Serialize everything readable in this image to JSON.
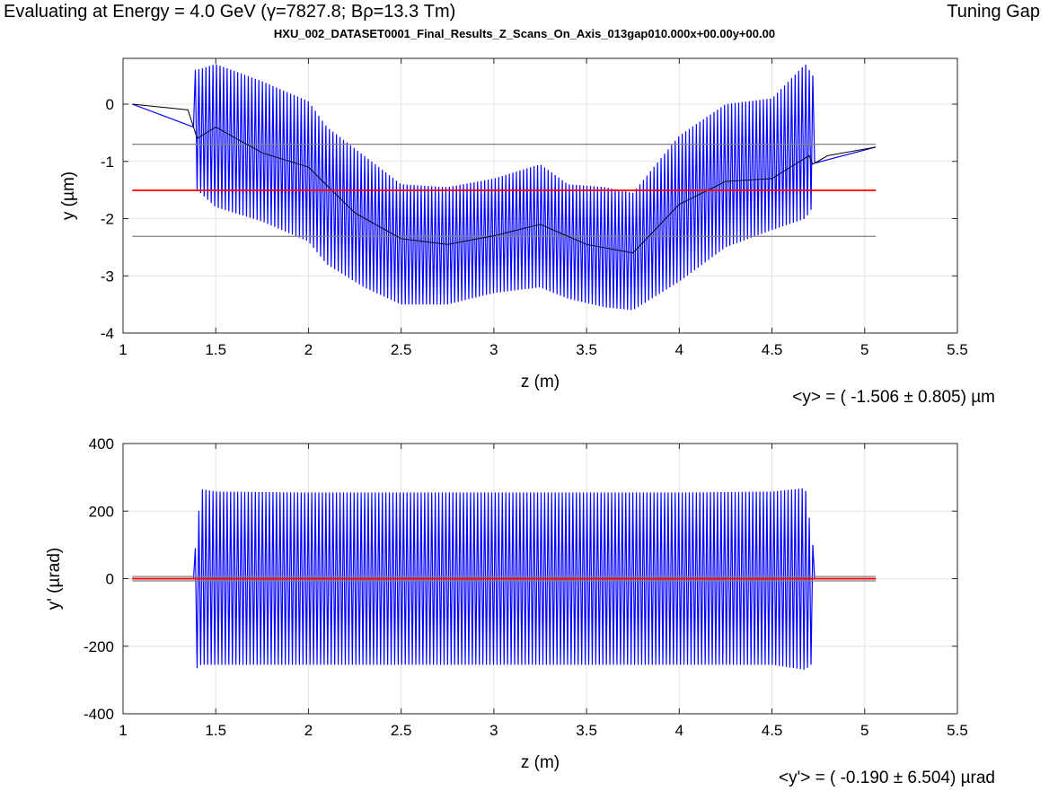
{
  "header": {
    "left": "Evaluating at Energy =  4.0 GeV (γ=7827.8; Bρ=13.3 Tm)",
    "right": "Tuning Gap",
    "subtitle": "HXU_002_DATASET0001_Final_Results_Z_Scans_On_Axis_013gap010.000x+00.00y+00.00"
  },
  "colors": {
    "signal": "#0000ff",
    "mean": "#ff0000",
    "band": "#808080",
    "trend": "#000000"
  },
  "chart_data": [
    {
      "type": "line",
      "xlabel": "z (m)",
      "ylabel": "y (µm)",
      "xlim": [
        1,
        5.5
      ],
      "ylim": [
        -4,
        0.8
      ],
      "xticks": [
        "1",
        "1.5",
        "2",
        "2.5",
        "3",
        "3.5",
        "4",
        "4.5",
        "5",
        "5.5"
      ],
      "yticks": [
        "0",
        "-1",
        "-2",
        "-3",
        "-4"
      ],
      "grid": true,
      "stat_text": "<y> = ( -1.506 ± 0.805) µm",
      "mean": -1.506,
      "std": 0.805,
      "z_range": [
        1.05,
        5.06
      ],
      "undulator_range": [
        1.39,
        4.72
      ],
      "envelope": {
        "z": [
          1.39,
          1.4,
          1.5,
          1.75,
          2.0,
          2.1,
          2.3,
          2.5,
          2.75,
          3.0,
          3.25,
          3.4,
          3.6,
          3.75,
          4.0,
          4.25,
          4.5,
          4.68,
          4.72
        ],
        "upper": [
          0.6,
          0.6,
          0.7,
          0.4,
          0.05,
          -0.4,
          -0.9,
          -1.4,
          -1.45,
          -1.3,
          -1.05,
          -1.4,
          -1.45,
          -1.55,
          -0.55,
          0.0,
          0.1,
          0.7,
          0.5
        ],
        "lower": [
          -1.9,
          -1.5,
          -1.8,
          -2.05,
          -2.4,
          -2.8,
          -3.2,
          -3.5,
          -3.5,
          -3.3,
          -3.2,
          -3.4,
          -3.55,
          -3.6,
          -3.1,
          -2.5,
          -2.2,
          -2.0,
          -1.8
        ]
      },
      "trend": {
        "z": [
          1.05,
          1.35,
          1.4,
          1.5,
          1.75,
          2.0,
          2.25,
          2.5,
          2.75,
          3.0,
          3.25,
          3.5,
          3.75,
          4.0,
          4.25,
          4.5,
          4.7,
          4.72,
          4.8,
          5.06
        ],
        "y": [
          0.0,
          -0.1,
          -0.6,
          -0.4,
          -0.85,
          -1.1,
          -1.9,
          -2.35,
          -2.45,
          -2.3,
          -2.1,
          -2.45,
          -2.6,
          -1.75,
          -1.35,
          -1.3,
          -0.9,
          -1.05,
          -0.9,
          -0.75
        ]
      },
      "mean_line": {
        "z": [
          1.05,
          5.06
        ],
        "y": -1.506
      },
      "band_lines": [
        {
          "z": [
            1.05,
            5.06
          ],
          "y": -0.7
        },
        {
          "z": [
            1.05,
            5.06
          ],
          "y": -2.31
        }
      ]
    },
    {
      "type": "line",
      "xlabel": "z (m)",
      "ylabel": "y' (µrad)",
      "xlim": [
        1,
        5.5
      ],
      "ylim": [
        -400,
        400
      ],
      "xticks": [
        "1",
        "1.5",
        "2",
        "2.5",
        "3",
        "3.5",
        "4",
        "4.5",
        "5",
        "5.5"
      ],
      "yticks": [
        "400",
        "200",
        "0",
        "-200",
        "-400"
      ],
      "grid": true,
      "stat_text": "<y'> = ( -0.190 ± 6.504) µrad",
      "mean": -0.19,
      "std": 6.504,
      "z_range": [
        1.05,
        5.06
      ],
      "undulator_range": [
        1.39,
        4.72
      ],
      "envelope": {
        "z": [
          1.39,
          1.42,
          1.5,
          2.0,
          2.5,
          3.0,
          3.5,
          4.0,
          4.5,
          4.68,
          4.72
        ],
        "upper": [
          90,
          265,
          258,
          255,
          255,
          255,
          255,
          255,
          258,
          268,
          100
        ],
        "lower": [
          -270,
          -255,
          -255,
          -255,
          -255,
          -255,
          -255,
          -255,
          -255,
          -270,
          -250
        ]
      },
      "trend": {
        "z": [
          1.05,
          5.06
        ],
        "y": [
          0.0,
          0.0
        ]
      },
      "mean_line": {
        "z": [
          1.05,
          5.06
        ],
        "y": -0.19
      },
      "band_lines": [
        {
          "z": [
            1.05,
            5.06
          ],
          "y": 6.3
        },
        {
          "z": [
            1.05,
            5.06
          ],
          "y": -6.7
        }
      ]
    }
  ]
}
